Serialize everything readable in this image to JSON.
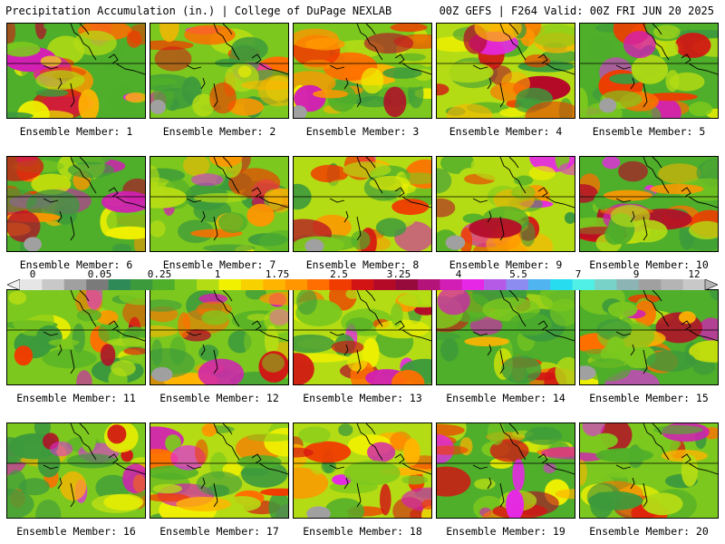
{
  "header": {
    "title": "Precipitation Accumulation (in.) | College of DuPage NEXLAB",
    "run_info": "00Z GEFS | F264 Valid: 00Z FRI JUN 20 2025"
  },
  "members": [
    {
      "label": "Ensemble Member: 1"
    },
    {
      "label": "Ensemble Member: 2"
    },
    {
      "label": "Ensemble Member: 3"
    },
    {
      "label": "Ensemble Member: 4"
    },
    {
      "label": "Ensemble Member: 5"
    },
    {
      "label": "Ensemble Member: 6"
    },
    {
      "label": "Ensemble Member: 7"
    },
    {
      "label": "Ensemble Member: 8"
    },
    {
      "label": "Ensemble Member: 9"
    },
    {
      "label": "Ensemble Member: 10"
    },
    {
      "label": "Ensemble Member: 11"
    },
    {
      "label": "Ensemble Member: 12"
    },
    {
      "label": "Ensemble Member: 13"
    },
    {
      "label": "Ensemble Member: 14"
    },
    {
      "label": "Ensemble Member: 15"
    },
    {
      "label": "Ensemble Member: 16"
    },
    {
      "label": "Ensemble Member: 17"
    },
    {
      "label": "Ensemble Member: 18"
    },
    {
      "label": "Ensemble Member: 19"
    },
    {
      "label": "Ensemble Member: 20"
    }
  ],
  "colorbar": {
    "labels": [
      "0",
      "0.05",
      "0.25",
      "1",
      "1.75",
      "2.5",
      "3.25",
      "4",
      "5.5",
      "7",
      "9",
      "12"
    ],
    "colors": [
      "#e6e6e6",
      "#c8c8c8",
      "#a0a0a0",
      "#7a7a7a",
      "#2e8b57",
      "#3c9a3c",
      "#4fae2a",
      "#7cc81e",
      "#b4dc14",
      "#f0f000",
      "#f8d200",
      "#ffb400",
      "#ff9600",
      "#ff6e00",
      "#f03c00",
      "#d21414",
      "#b40a28",
      "#960a3c",
      "#b4147a",
      "#d21eb4",
      "#e628e6",
      "#b45ae6",
      "#8c8cf0",
      "#50b4f0",
      "#28dcf0",
      "#50f0e6",
      "#78d2c8",
      "#8cb4b4",
      "#a0a0a0",
      "#b4b4b4",
      "#c8c8c8"
    ]
  }
}
